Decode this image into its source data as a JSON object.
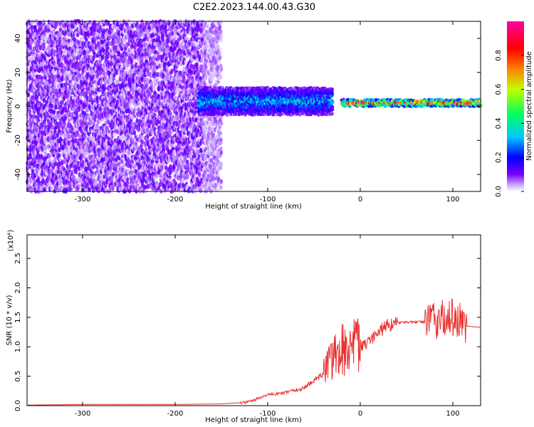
{
  "title": "C2E2.2023.144.00.43.G30",
  "colors": {
    "spectrogram_base": "#7b00ff",
    "snr_line": "#e8312e",
    "axis": "#000000"
  },
  "chart_data": [
    {
      "type": "heatmap",
      "name": "spectrogram",
      "xlabel": "Height of straight line (km)",
      "ylabel": "Frequency (Hz)",
      "xlim": [
        -360,
        130
      ],
      "ylim": [
        -50,
        50
      ],
      "xticks": [
        -300,
        -200,
        -100,
        0,
        100
      ],
      "yticks": [
        -40,
        -20,
        0,
        20,
        40
      ],
      "colorbar": {
        "label": "Normalized spectral amplitude",
        "colormap": "rainbow (white-violet-blue-cyan-green-yellow-red-magenta)",
        "range": [
          0.0,
          1.0
        ],
        "ticks": [
          0.0,
          0.2,
          0.4,
          0.6,
          0.8
        ]
      },
      "regions": [
        {
          "desc": "noise",
          "x": [
            -360,
            -170
          ],
          "freq_halfwidth": 50,
          "amplitude": 0.05
        },
        {
          "desc": "transition",
          "x": [
            -170,
            -150
          ],
          "freq_halfwidth": 50,
          "amplitude": 0.03
        },
        {
          "desc": "signal broad",
          "x": [
            -175,
            -30
          ],
          "freq_center": 3,
          "freq_halfwidth": 8,
          "amplitude": 0.3
        },
        {
          "desc": "signal narrow",
          "x": [
            -20,
            130
          ],
          "freq_center": 2,
          "freq_halfwidth": 2,
          "amplitude": 0.8
        }
      ]
    },
    {
      "type": "line",
      "name": "snr",
      "xlabel": "Height of straight line (km)",
      "ylabel": "SNR (10 * v/v)",
      "y_multiplier": "(x10⁴)",
      "xlim": [
        -360,
        130
      ],
      "ylim": [
        0,
        2.9
      ],
      "xticks": [
        -300,
        -200,
        -100,
        0,
        100
      ],
      "yticks": [
        0.0,
        0.5,
        1.0,
        1.5,
        2.0,
        2.5
      ],
      "series": [
        {
          "color": "#e8312e",
          "x": [
            -360,
            -300,
            -200,
            -150,
            -120,
            -100,
            -80,
            -60,
            -40,
            -30,
            -20,
            -10,
            0,
            10,
            20,
            30,
            40,
            60,
            80,
            100,
            110,
            115,
            130
          ],
          "y": [
            0.01,
            0.02,
            0.02,
            0.03,
            0.06,
            0.18,
            0.22,
            0.3,
            0.55,
            0.75,
            0.9,
            0.95,
            1.0,
            1.1,
            1.25,
            1.35,
            1.4,
            1.42,
            1.42,
            1.45,
            1.4,
            1.35,
            1.33
          ]
        }
      ]
    }
  ]
}
